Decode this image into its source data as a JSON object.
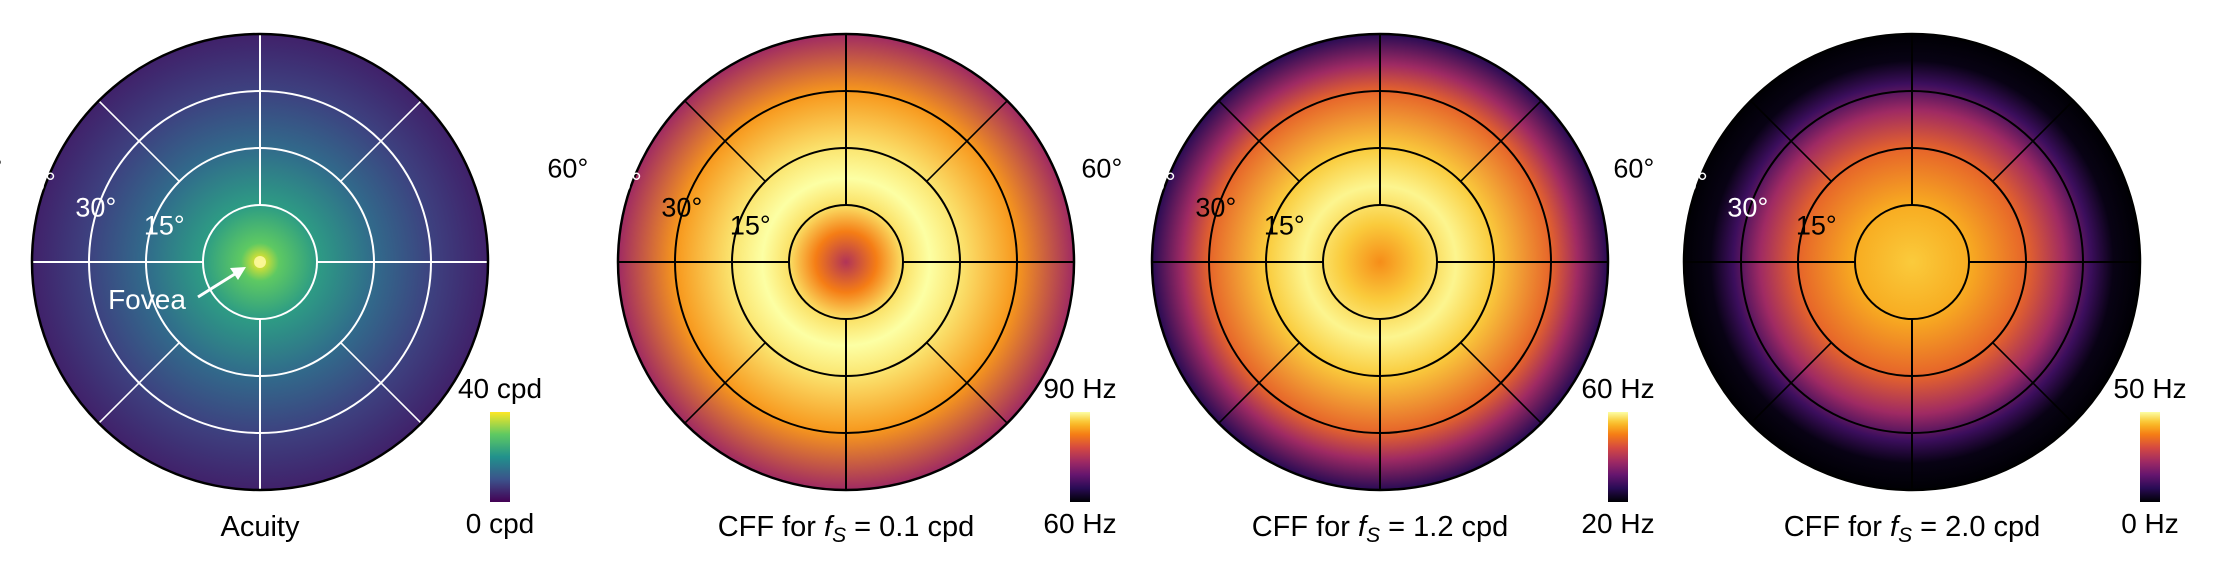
{
  "chart_data": [
    {
      "type": "heatmap",
      "projection": "polar",
      "title": "Acuity",
      "title_parts": [
        "Acuity"
      ],
      "colormap": "viridis",
      "colorbar": {
        "max_label": "40 cpd",
        "min_label": "0 cpd",
        "range": [
          0,
          40
        ],
        "unit": "cpd"
      },
      "ring_labels": [
        "15°",
        "30°",
        "45°",
        "60°"
      ],
      "ring_label_colors": [
        "#ffffff",
        "#ffffff",
        "#ffffff",
        "#000000"
      ],
      "rings_deg": [
        15,
        30,
        45
      ],
      "grid_color": "#ffffff",
      "annotation": "Fovea",
      "profile": {
        "eccentricity_deg": [
          0,
          5,
          15,
          30,
          45,
          60
        ],
        "values": [
          40,
          30,
          22,
          14,
          8,
          4
        ]
      },
      "cmap_fraction": [
        1.0,
        0.75,
        0.55,
        0.35,
        0.2,
        0.1
      ]
    },
    {
      "type": "heatmap",
      "projection": "polar",
      "title": "CFF for fS = 0.1 cpd",
      "title_parts": [
        "CFF for ",
        "f",
        "S",
        " = 0.1 cpd"
      ],
      "colormap": "inferno",
      "colorbar": {
        "max_label": "90 Hz",
        "min_label": "60 Hz",
        "range": [
          60,
          90
        ],
        "unit": "Hz"
      },
      "ring_labels": [
        "15°",
        "30°",
        "45°",
        "60°"
      ],
      "ring_label_colors": [
        "#000000",
        "#000000",
        "#ffffff",
        "#000000"
      ],
      "rings_deg": [
        15,
        30,
        45
      ],
      "grid_color": "#000000",
      "profile": {
        "eccentricity_deg": [
          0,
          8,
          15,
          22,
          30,
          45,
          60
        ],
        "values": [
          78,
          84,
          88,
          89,
          88,
          84,
          75
        ]
      },
      "cmap_fraction": [
        0.5,
        0.75,
        0.94,
        1.0,
        0.95,
        0.8,
        0.45
      ]
    },
    {
      "type": "heatmap",
      "projection": "polar",
      "title": "CFF for fS = 1.2 cpd",
      "title_parts": [
        "CFF for ",
        "f",
        "S",
        " = 1.2 cpd"
      ],
      "colormap": "inferno",
      "colorbar": {
        "max_label": "60 Hz",
        "min_label": "20 Hz",
        "range": [
          20,
          60
        ],
        "unit": "Hz"
      },
      "ring_labels": [
        "15°",
        "30°",
        "45°",
        "60°"
      ],
      "ring_label_colors": [
        "#000000",
        "#000000",
        "#ffffff",
        "#000000"
      ],
      "rings_deg": [
        15,
        30,
        45
      ],
      "grid_color": "#000000",
      "profile": {
        "eccentricity_deg": [
          0,
          10,
          20,
          30,
          45,
          52,
          60
        ],
        "values": [
          50,
          55,
          58,
          56,
          47,
          38,
          26
        ]
      },
      "cmap_fraction": [
        0.78,
        0.9,
        0.98,
        0.9,
        0.68,
        0.45,
        0.15
      ]
    },
    {
      "type": "heatmap",
      "projection": "polar",
      "title": "CFF for fS = 2.0 cpd",
      "title_parts": [
        "CFF for ",
        "f",
        "S",
        " = 2.0 cpd"
      ],
      "colormap": "inferno",
      "colorbar": {
        "max_label": "50 Hz",
        "min_label": "0 Hz",
        "range": [
          0,
          50
        ],
        "unit": "Hz"
      },
      "ring_labels": [
        "15°",
        "30°",
        "45°",
        "60°"
      ],
      "ring_label_colors": [
        "#000000",
        "#ffffff",
        "#ffffff",
        "#000000"
      ],
      "rings_deg": [
        15,
        30,
        45
      ],
      "grid_color": "#000000",
      "profile": {
        "eccentricity_deg": [
          0,
          15,
          30,
          40,
          47,
          53,
          60
        ],
        "values": [
          45,
          42,
          34,
          22,
          10,
          2,
          0
        ]
      },
      "cmap_fraction": [
        0.9,
        0.84,
        0.68,
        0.45,
        0.2,
        0.03,
        0.0
      ]
    }
  ]
}
